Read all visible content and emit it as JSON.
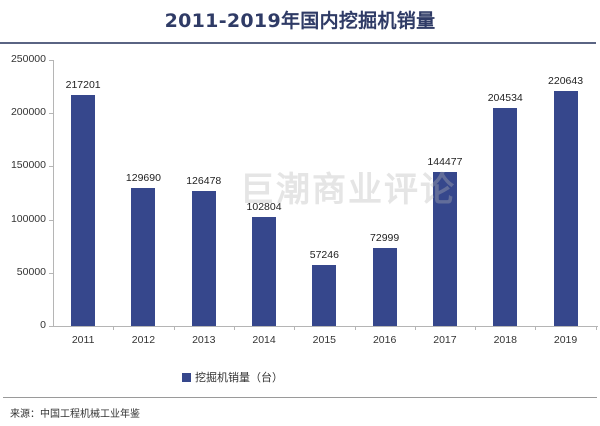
{
  "title": "2011-2019年国内挖掘机销量",
  "watermark": "巨潮商业评论",
  "source": "来源：中国工程机械工业年鉴",
  "colors": {
    "bar": "#36478c",
    "title": "#2f3b66"
  },
  "chart_data": {
    "type": "bar",
    "title": "2011-2019年国内挖掘机销量",
    "xlabel": "",
    "ylabel": "",
    "categories": [
      "2011",
      "2012",
      "2013",
      "2014",
      "2015",
      "2016",
      "2017",
      "2018",
      "2019"
    ],
    "series": [
      {
        "name": "挖掘机销量（台）",
        "values": [
          217201,
          129690,
          126478,
          102804,
          57246,
          72999,
          144477,
          204534,
          220643
        ]
      }
    ],
    "value_labels": [
      "217201",
      "129690",
      "126478",
      "102804",
      "57246",
      "72999",
      "144477",
      "204534",
      "220643"
    ],
    "yticks": [
      "250000",
      "200000",
      "150000",
      "100000",
      "50000",
      "0"
    ],
    "ylim": [
      0,
      250000
    ],
    "grid": false,
    "legend_position": "bottom"
  },
  "legend": {
    "label": "挖掘机销量（台）"
  }
}
